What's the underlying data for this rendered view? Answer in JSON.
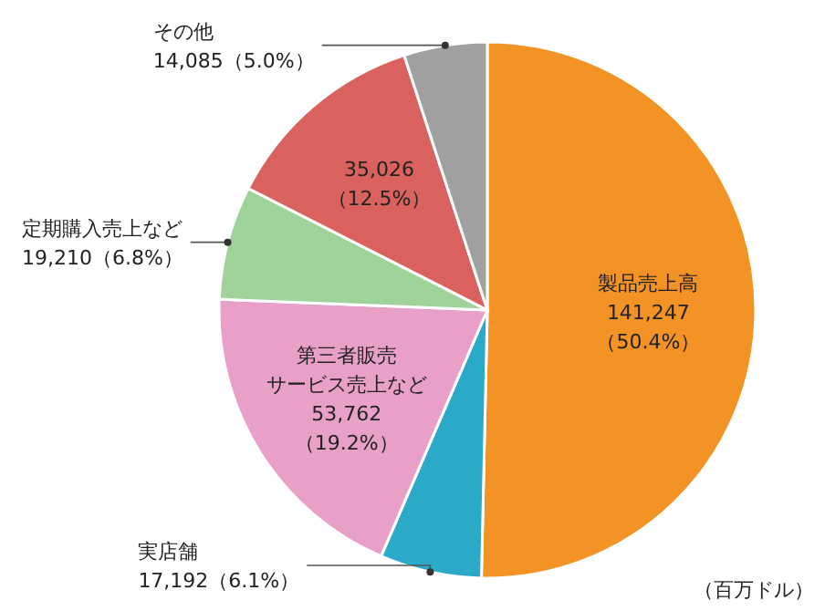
{
  "chart_data": {
    "type": "pie",
    "categories": [
      "製品売上高",
      "実店舗",
      "第三者販売サービス売上など",
      "定期購入売上など",
      null,
      "その他"
    ],
    "values": [
      141247,
      17192,
      53762,
      19210,
      35026,
      14085
    ],
    "colors": [
      "#f39325",
      "#2aa9c9",
      "#e8a0c8",
      "#9fd39a",
      "#d9625f",
      "#a0a0a0"
    ],
    "value_labels": [
      "141,247（50.4%）",
      "17,192（6.1%）",
      "53,762（19.2%）",
      "19,210（6.8%）",
      "35,026（12.5%）",
      "14,085（5.0%）"
    ],
    "annotations": [
      "（百万ドル）"
    ]
  }
}
